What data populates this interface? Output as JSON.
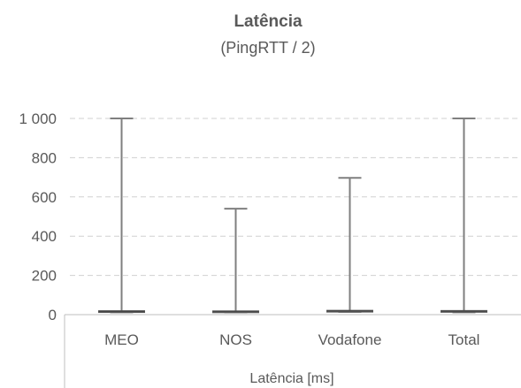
{
  "chart_data": {
    "type": "box",
    "title": "Latência",
    "subtitle": "(PingRTT / 2)",
    "xlabel": "Latência [ms]",
    "ylabel": "",
    "categories": [
      "MEO",
      "NOS",
      "Vodafone",
      "Total"
    ],
    "series": [
      {
        "boxes": [
          {
            "category": "MEO",
            "min": 12,
            "q1": 15,
            "median": 17,
            "q3": 20,
            "max": 1000
          },
          {
            "category": "NOS",
            "min": 12,
            "q1": 15,
            "median": 17,
            "q3": 19,
            "max": 540
          },
          {
            "category": "Vodafone",
            "min": 14,
            "q1": 17,
            "median": 19,
            "q3": 22,
            "max": 697
          },
          {
            "category": "Total",
            "min": 12,
            "q1": 15,
            "median": 18,
            "q3": 21,
            "max": 1000
          }
        ]
      }
    ],
    "ylim": [
      0,
      1000
    ],
    "yticks": [
      0,
      200,
      400,
      600,
      800,
      1000
    ],
    "ytick_labels": [
      "0",
      "200",
      "400",
      "600",
      "800",
      "1 000"
    ],
    "grid": true,
    "colors": {
      "whisker": "#7f7f7f",
      "box": "#5a5a5a",
      "grid": "#d0d0d0",
      "axis": "#bfbfbf",
      "text": "#595959"
    }
  }
}
